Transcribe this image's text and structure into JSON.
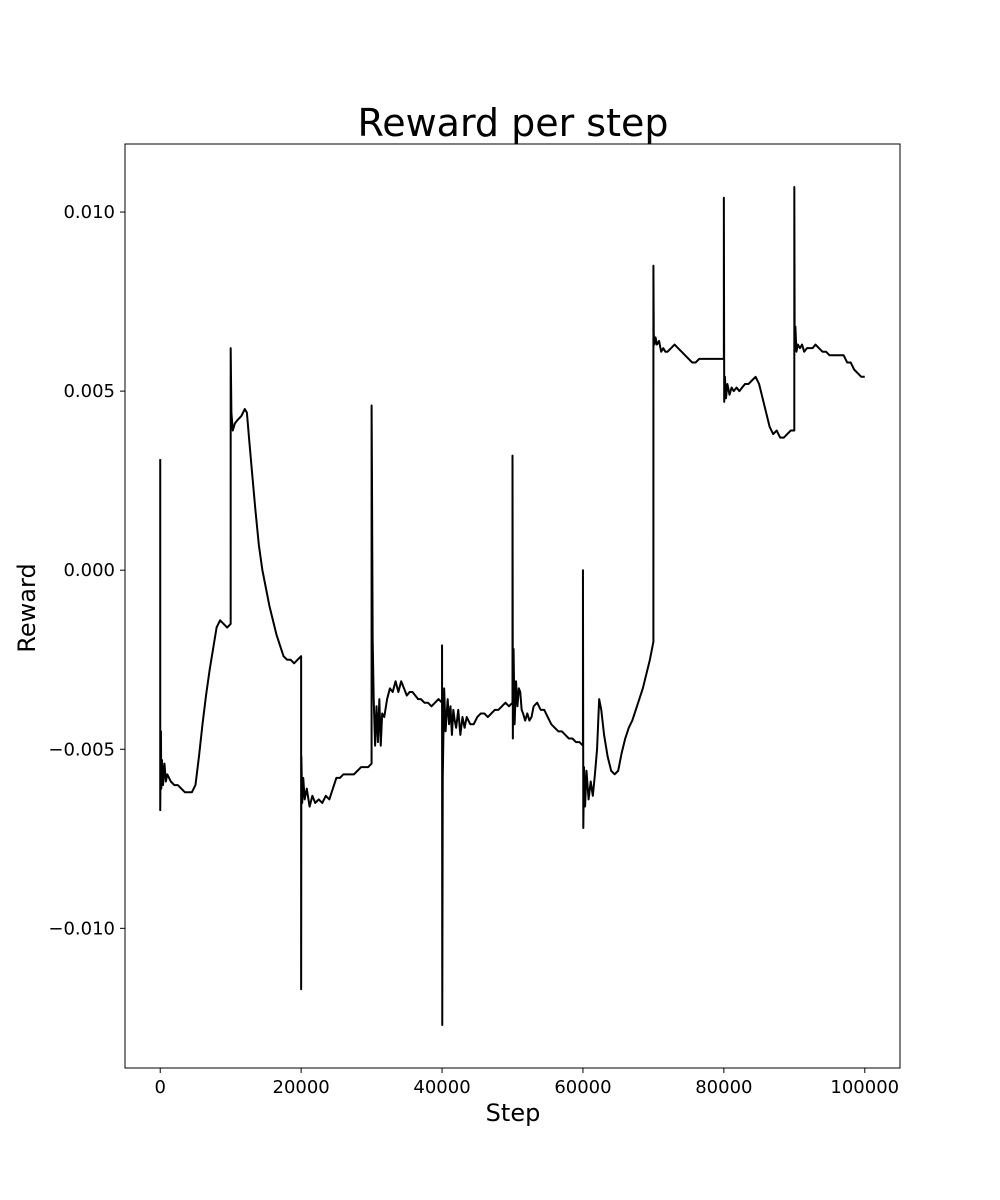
{
  "chart_data": {
    "type": "line",
    "title": "Reward per step",
    "xlabel": "Step",
    "ylabel": "Reward",
    "xlim": [
      -5000,
      105000
    ],
    "ylim": [
      -0.0139,
      0.0119
    ],
    "xticks": [
      0,
      20000,
      40000,
      60000,
      80000,
      100000
    ],
    "xtick_labels": [
      "0",
      "20000",
      "40000",
      "60000",
      "80000",
      "100000"
    ],
    "yticks": [
      -0.01,
      -0.005,
      0.0,
      0.005,
      0.01
    ],
    "ytick_labels": [
      "−0.010",
      "−0.005",
      "0.000",
      "0.005",
      "0.010"
    ],
    "grid": false,
    "line_color": "#000000",
    "series": [
      {
        "x": [
          0,
          1,
          100,
          150,
          250,
          400,
          600,
          800,
          1000,
          1500,
          2000,
          2500,
          3000,
          3500,
          4000,
          4500,
          5000,
          5500,
          6000,
          6500,
          7000,
          7500,
          8000,
          8500,
          9000,
          9500,
          9999,
          10000,
          10100,
          10300,
          10600,
          11000,
          11500,
          12000,
          12300,
          12600,
          13000,
          13500,
          14000,
          14500,
          15000,
          15500,
          16000,
          16500,
          17000,
          17500,
          18000,
          18500,
          19000,
          19500,
          19999,
          20000,
          20030,
          20150,
          20300,
          20500,
          20800,
          21200,
          21600,
          22000,
          22500,
          23000,
          23500,
          24000,
          24500,
          25000,
          25500,
          26000,
          26500,
          27000,
          27500,
          28000,
          28500,
          29000,
          29500,
          29999,
          30000,
          30050,
          30150,
          30300,
          30500,
          30700,
          30900,
          31100,
          31300,
          31500,
          31800,
          32200,
          32600,
          33000,
          33400,
          33800,
          34200,
          34600,
          35000,
          35400,
          35800,
          36200,
          36600,
          37000,
          37500,
          38000,
          38500,
          39000,
          39500,
          39999,
          40000,
          40030,
          40100,
          40300,
          40500,
          40800,
          41000,
          41200,
          41400,
          41600,
          41800,
          42000,
          42300,
          42600,
          42900,
          43200,
          43500,
          44000,
          44500,
          45000,
          45500,
          46000,
          46500,
          47000,
          47500,
          48000,
          48500,
          49000,
          49500,
          49999,
          50000,
          50050,
          50150,
          50300,
          50500,
          50700,
          50900,
          51100,
          51300,
          51500,
          51800,
          52100,
          52400,
          52700,
          53000,
          53500,
          54000,
          54500,
          55000,
          55500,
          56000,
          56500,
          57000,
          57500,
          58000,
          58500,
          59000,
          59500,
          59999,
          60000,
          60050,
          60150,
          60300,
          60500,
          60800,
          61100,
          61400,
          61700,
          62000,
          62300,
          62600,
          63000,
          63500,
          64000,
          64500,
          65000,
          65500,
          66000,
          66500,
          67000,
          67500,
          68000,
          68500,
          69000,
          69500,
          69999,
          70000,
          70050,
          70150,
          70300,
          70500,
          70800,
          71100,
          71400,
          71700,
          72000,
          72500,
          73000,
          73500,
          74000,
          74500,
          75000,
          75500,
          76000,
          76500,
          77000,
          77500,
          78000,
          78500,
          79000,
          79500,
          79999,
          80000,
          80050,
          80150,
          80300,
          80500,
          80800,
          81100,
          81400,
          81800,
          82200,
          82600,
          83000,
          83500,
          84000,
          84500,
          85000,
          85500,
          86000,
          86500,
          87000,
          87500,
          88000,
          88500,
          89000,
          89500,
          89999,
          90000,
          90050,
          90150,
          90300,
          90500,
          90800,
          91100,
          91400,
          91800,
          92200,
          92600,
          93000,
          93500,
          94000,
          94500,
          95000,
          95500,
          96000,
          96500,
          97000,
          97500,
          98000,
          98500,
          99000,
          99500,
          100000
        ],
        "y": [
          0.0031,
          -0.0067,
          -0.0045,
          -0.0061,
          -0.0053,
          -0.006,
          -0.0054,
          -0.0059,
          -0.0057,
          -0.0059,
          -0.006,
          -0.006,
          -0.0061,
          -0.0062,
          -0.0062,
          -0.0062,
          -0.006,
          -0.0052,
          -0.0043,
          -0.0035,
          -0.0028,
          -0.0022,
          -0.0016,
          -0.0014,
          -0.0015,
          -0.0016,
          -0.0015,
          0.0062,
          0.0044,
          0.0039,
          0.0041,
          0.0042,
          0.0043,
          0.0045,
          0.0044,
          0.0037,
          0.0028,
          0.0017,
          0.0007,
          0.0,
          -0.0005,
          -0.001,
          -0.0014,
          -0.0018,
          -0.0021,
          -0.0024,
          -0.0025,
          -0.0025,
          -0.0026,
          -0.0025,
          -0.0024,
          -0.0117,
          -0.0052,
          -0.0065,
          -0.0058,
          -0.0064,
          -0.0061,
          -0.0066,
          -0.0063,
          -0.0065,
          -0.0064,
          -0.0065,
          -0.0063,
          -0.0064,
          -0.0061,
          -0.0058,
          -0.0058,
          -0.0057,
          -0.0057,
          -0.0057,
          -0.0057,
          -0.0056,
          -0.0055,
          -0.0055,
          -0.0055,
          -0.0054,
          0.0046,
          0.0028,
          -0.0019,
          -0.0036,
          -0.0049,
          -0.0038,
          -0.0048,
          -0.0036,
          -0.0049,
          -0.004,
          -0.0041,
          -0.0036,
          -0.0033,
          -0.0034,
          -0.0031,
          -0.0034,
          -0.0031,
          -0.0033,
          -0.0035,
          -0.0034,
          -0.0034,
          -0.0035,
          -0.0036,
          -0.0036,
          -0.0037,
          -0.0037,
          -0.0038,
          -0.0037,
          -0.0036,
          -0.0037,
          -0.0021,
          -0.0127,
          -0.0058,
          -0.0033,
          -0.0045,
          -0.0036,
          -0.0043,
          -0.0038,
          -0.0046,
          -0.0039,
          -0.0042,
          -0.0044,
          -0.0039,
          -0.0046,
          -0.0041,
          -0.0044,
          -0.0041,
          -0.0043,
          -0.0043,
          -0.0041,
          -0.004,
          -0.004,
          -0.0041,
          -0.004,
          -0.0039,
          -0.0039,
          -0.0038,
          -0.0037,
          -0.0038,
          -0.0037,
          0.0032,
          -0.0047,
          -0.0022,
          -0.0043,
          -0.0031,
          -0.0038,
          -0.0033,
          -0.0034,
          -0.0039,
          -0.004,
          -0.0042,
          -0.004,
          -0.0042,
          -0.0041,
          -0.0038,
          -0.0037,
          -0.0039,
          -0.0039,
          -0.0041,
          -0.0043,
          -0.0044,
          -0.0045,
          -0.0045,
          -0.0046,
          -0.0047,
          -0.0047,
          -0.0048,
          -0.0048,
          -0.0049,
          0.0,
          -0.0072,
          -0.0055,
          -0.0066,
          -0.0056,
          -0.0064,
          -0.0059,
          -0.0063,
          -0.0057,
          -0.005,
          -0.0036,
          -0.0039,
          -0.0046,
          -0.0052,
          -0.0056,
          -0.0057,
          -0.0056,
          -0.0051,
          -0.0047,
          -0.0044,
          -0.0042,
          -0.0039,
          -0.0036,
          -0.0033,
          -0.0029,
          -0.0025,
          -0.002,
          0.0085,
          0.0066,
          0.0063,
          0.0065,
          0.0063,
          0.0064,
          0.0061,
          0.0062,
          0.0061,
          0.0061,
          0.0062,
          0.0063,
          0.0062,
          0.0061,
          0.006,
          0.0059,
          0.0058,
          0.0058,
          0.0059,
          0.0059,
          0.0059,
          0.0059,
          0.0059,
          0.0059,
          0.0059,
          0.0059,
          0.0104,
          0.0047,
          0.0054,
          0.0048,
          0.0052,
          0.0049,
          0.0051,
          0.005,
          0.0051,
          0.005,
          0.0051,
          0.0052,
          0.0052,
          0.0053,
          0.0054,
          0.0052,
          0.0048,
          0.0044,
          0.004,
          0.0038,
          0.0039,
          0.0037,
          0.0037,
          0.0038,
          0.0039,
          0.0039,
          0.0107,
          0.0062,
          0.0068,
          0.0061,
          0.0063,
          0.0062,
          0.0063,
          0.0061,
          0.0062,
          0.0062,
          0.0062,
          0.0063,
          0.0062,
          0.0061,
          0.0061,
          0.006,
          0.006,
          0.006,
          0.006,
          0.006,
          0.0058,
          0.0058,
          0.0056,
          0.0055,
          0.0054,
          0.0054
        ]
      }
    ]
  }
}
